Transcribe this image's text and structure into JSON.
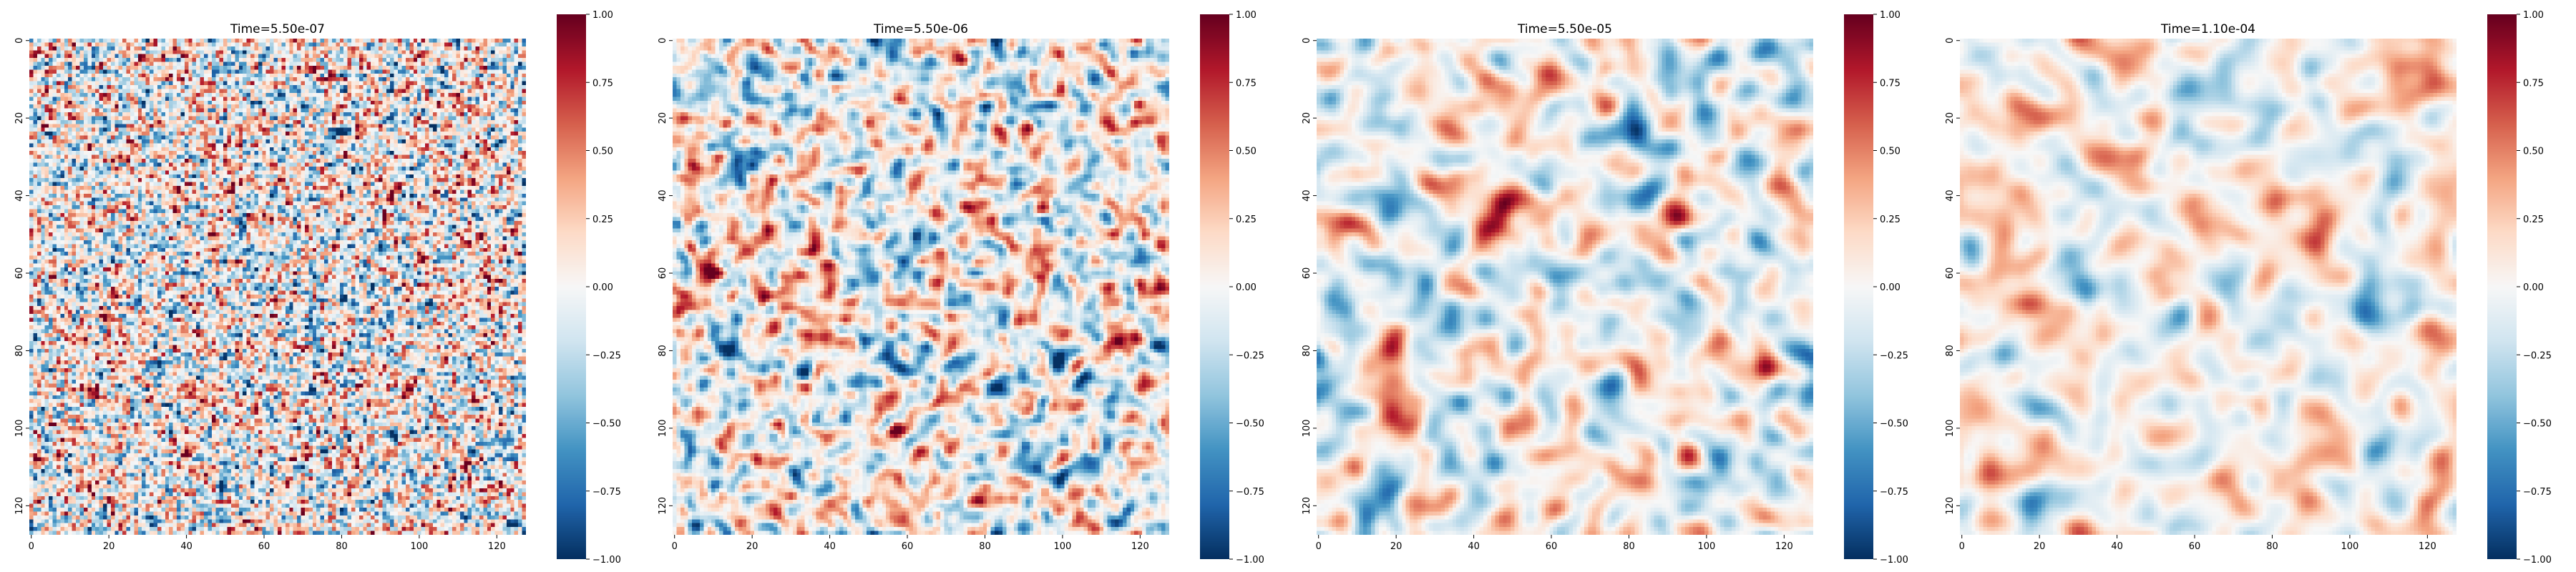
{
  "chart_data": [
    {
      "type": "heatmap",
      "title": "Time=5.50e-07",
      "x_ticks": [
        "0",
        "20",
        "40",
        "60",
        "80",
        "100",
        "120"
      ],
      "y_ticks": [
        "0",
        "20",
        "40",
        "60",
        "80",
        "100",
        "120"
      ],
      "grid_size": 128,
      "colorbar": {
        "colormap": "RdBu_r",
        "range": [
          -1,
          1
        ],
        "ticks": [
          "1.00",
          "0.75",
          "0.50",
          "0.25",
          "0.00",
          "−0.25",
          "−0.50",
          "−0.75",
          "−1.00"
        ]
      }
    },
    {
      "type": "heatmap",
      "title": "Time=5.50e-06",
      "x_ticks": [
        "0",
        "20",
        "40",
        "60",
        "80",
        "100",
        "120"
      ],
      "y_ticks": [
        "0",
        "20",
        "40",
        "60",
        "80",
        "100",
        "120"
      ],
      "grid_size": 128,
      "colorbar": {
        "colormap": "RdBu_r",
        "range": [
          -1,
          1
        ],
        "ticks": [
          "1.00",
          "0.75",
          "0.50",
          "0.25",
          "0.00",
          "−0.25",
          "−0.50",
          "−0.75",
          "−1.00"
        ]
      }
    },
    {
      "type": "heatmap",
      "title": "Time=5.50e-05",
      "x_ticks": [
        "0",
        "20",
        "40",
        "60",
        "80",
        "100",
        "120"
      ],
      "y_ticks": [
        "0",
        "20",
        "40",
        "60",
        "80",
        "100",
        "120"
      ],
      "grid_size": 128,
      "colorbar": {
        "colormap": "RdBu_r",
        "range": [
          -1,
          1
        ],
        "ticks": [
          "1.00",
          "0.75",
          "0.50",
          "0.25",
          "0.00",
          "−0.25",
          "−0.50",
          "−0.75",
          "−1.00"
        ]
      }
    },
    {
      "type": "heatmap",
      "title": "Time=1.10e-04",
      "x_ticks": [
        "0",
        "20",
        "40",
        "60",
        "80",
        "100",
        "120"
      ],
      "y_ticks": [
        "0",
        "20",
        "40",
        "60",
        "80",
        "100",
        "120"
      ],
      "grid_size": 128,
      "colorbar": {
        "colormap": "RdBu_r",
        "range": [
          -1,
          1
        ],
        "ticks": [
          "1.00",
          "0.75",
          "0.50",
          "0.25",
          "0.00",
          "−0.25",
          "−0.50",
          "−0.75",
          "−1.00"
        ]
      }
    }
  ]
}
